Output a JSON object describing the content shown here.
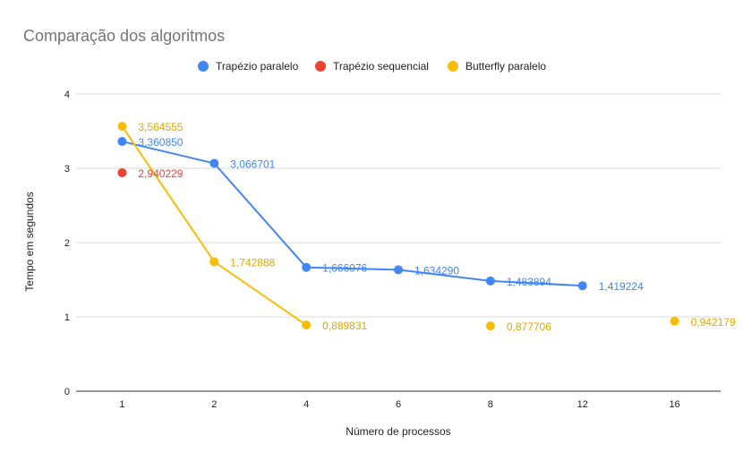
{
  "chart_data": {
    "type": "line",
    "title": "Comparação dos algoritmos",
    "xlabel": "Número de processos",
    "ylabel": "Tempo em segundos",
    "categories": [
      "1",
      "2",
      "4",
      "6",
      "8",
      "12",
      "16"
    ],
    "ylim": [
      0,
      4
    ],
    "yticks": [
      "0",
      "1",
      "2",
      "3",
      "4"
    ],
    "grid": true,
    "legend": "top",
    "series": [
      {
        "name": "Trapézio paralelo",
        "color": "#4285f4",
        "values": [
          3.36085,
          3.066701,
          1.666076,
          1.63429,
          1.483894,
          1.419224,
          null
        ],
        "labels": [
          "3,360850",
          "3,066701",
          "1,666076",
          "1,634290",
          "1,483894",
          "1,419224",
          null
        ]
      },
      {
        "name": "Trapézio sequencial",
        "color": "#ea4335",
        "values": [
          2.940229,
          null,
          null,
          null,
          null,
          null,
          null
        ],
        "labels": [
          "2,940229",
          null,
          null,
          null,
          null,
          null,
          null
        ]
      },
      {
        "name": "Butterfly paralelo",
        "color": "#fbbc04",
        "label_color": "#e0a800",
        "values": [
          3.564555,
          1.742888,
          0.889831,
          null,
          0.877706,
          null,
          0.942179
        ],
        "labels": [
          "3,564555",
          "1,742888",
          "0,889831",
          null,
          "0,877706",
          null,
          "0,942179"
        ]
      }
    ]
  }
}
